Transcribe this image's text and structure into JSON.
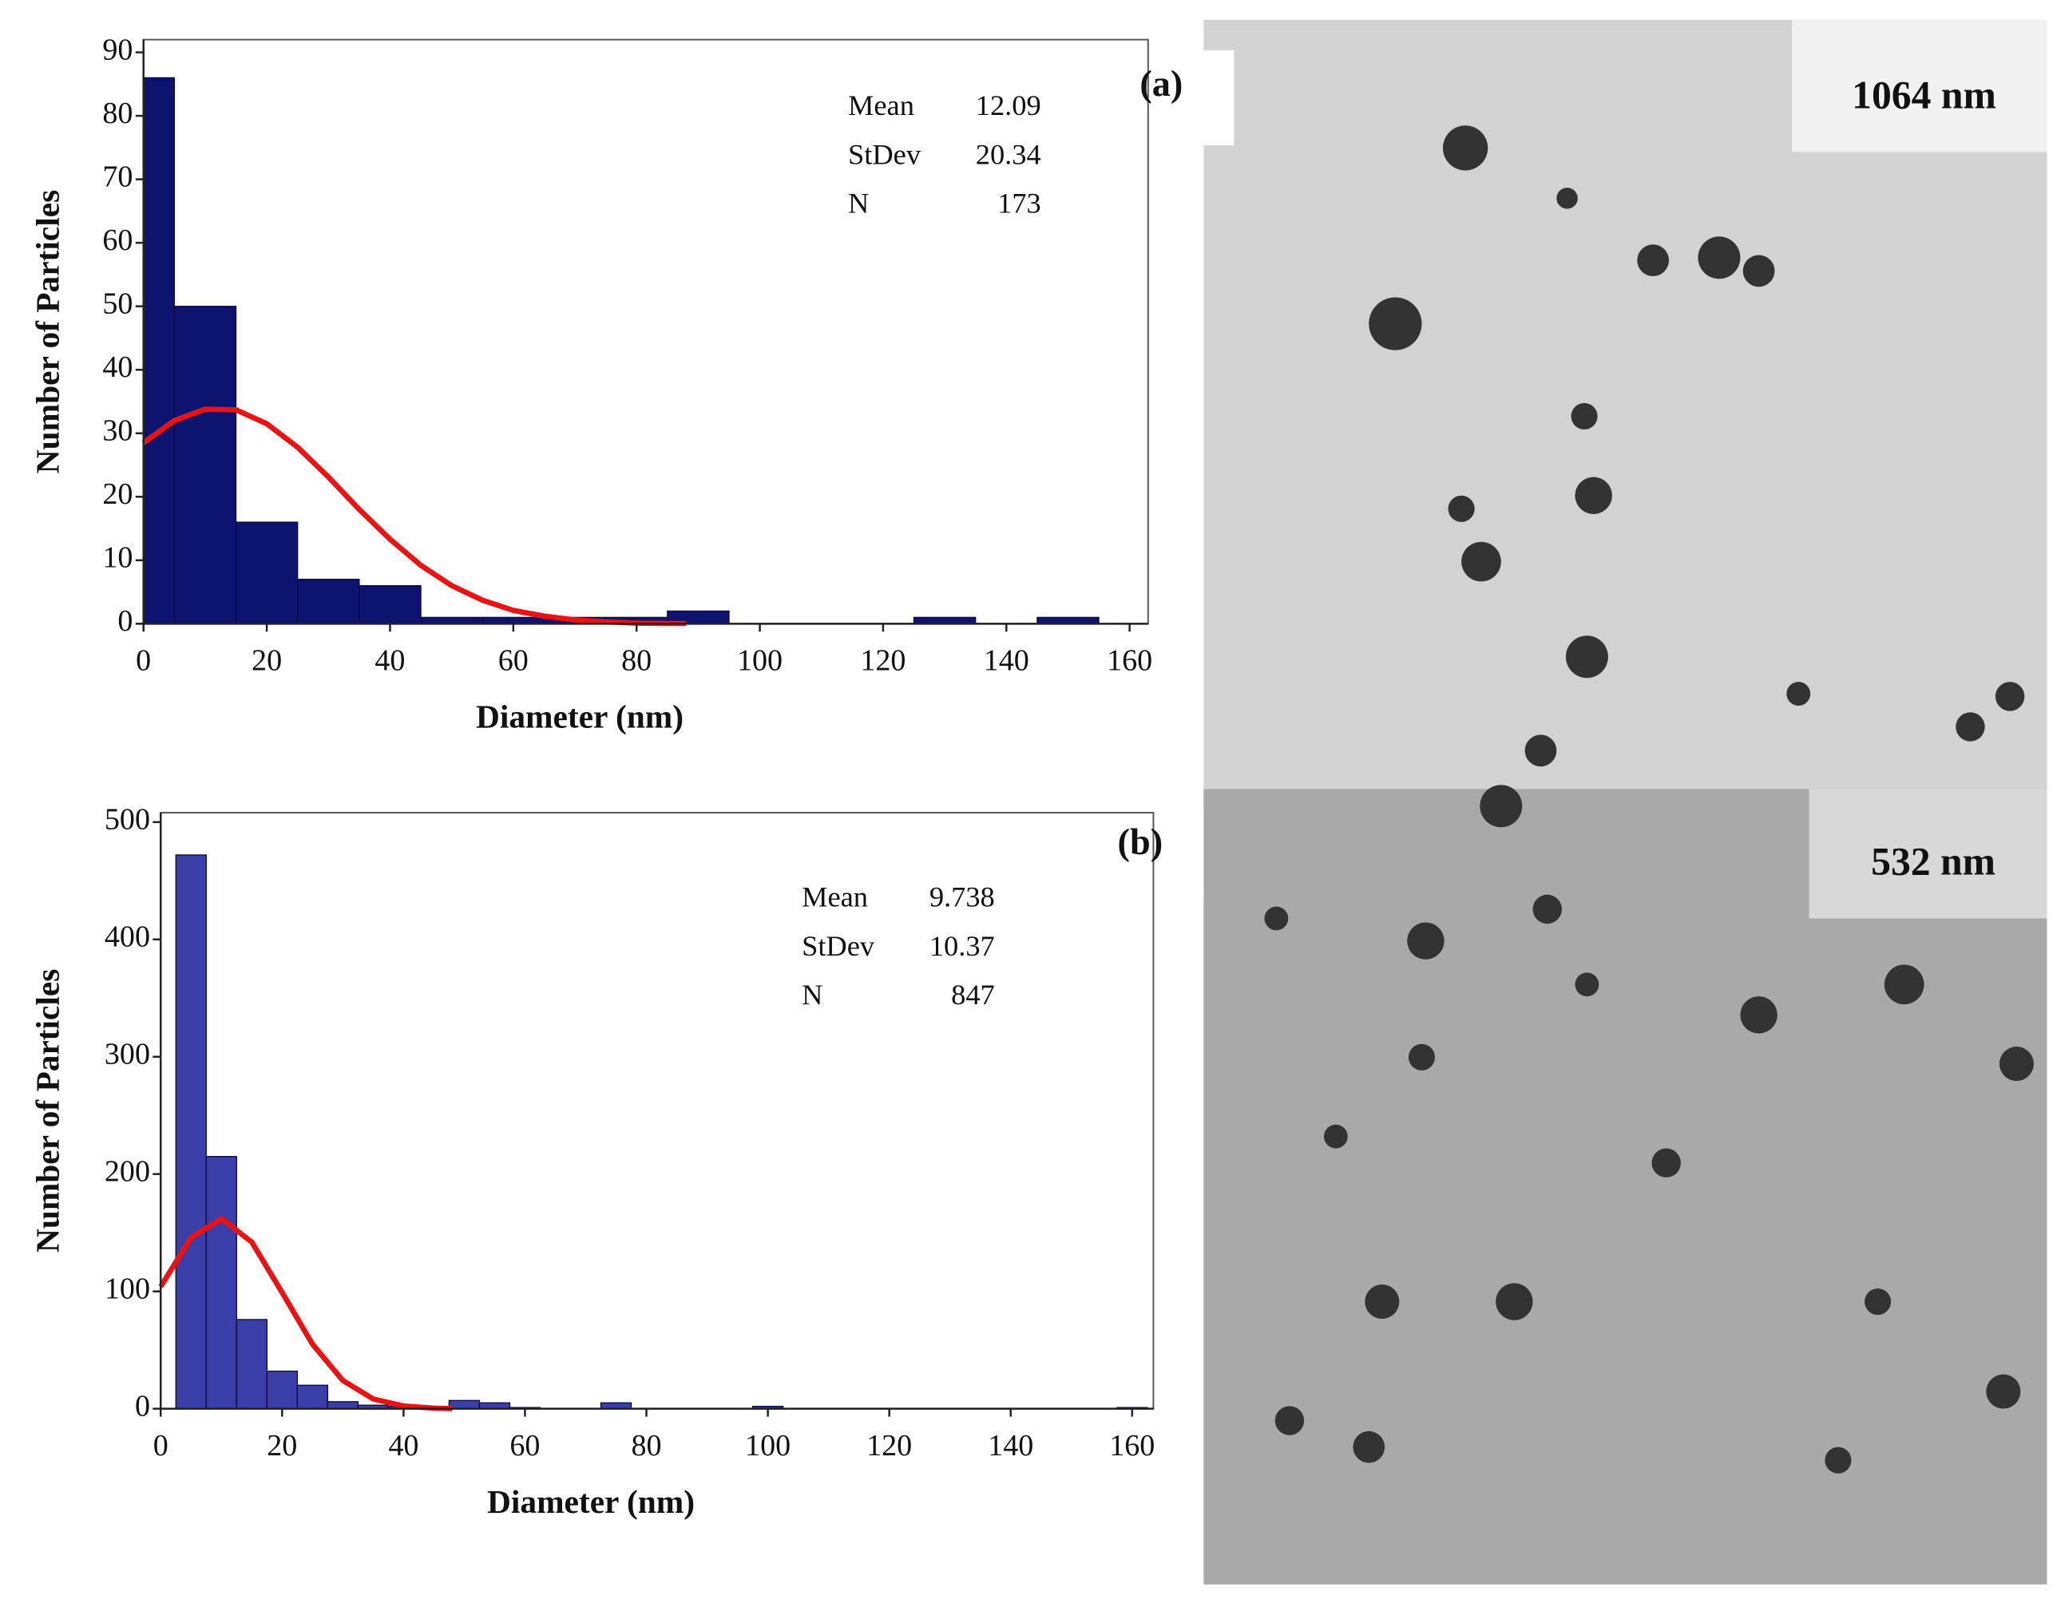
{
  "chart_data": [
    {
      "type": "histogram",
      "label": "(a)",
      "xlabel": "Diameter (nm)",
      "ylabel": "Number of Particles",
      "bins": [
        0,
        5,
        15,
        25,
        35,
        45,
        55,
        65,
        75,
        85,
        95,
        105,
        115,
        125,
        135,
        145,
        155
      ],
      "counts": [
        86,
        50,
        16,
        7,
        6,
        1,
        1,
        1,
        1,
        2,
        0,
        0,
        0,
        1,
        0,
        1
      ],
      "color": "#0d1470",
      "curve": {
        "color": "#ee1111",
        "x": [
          0,
          5,
          10,
          15,
          20,
          25,
          30,
          35,
          40,
          45,
          50,
          55,
          60,
          65,
          70,
          75,
          80,
          85,
          88
        ],
        "y": [
          28.5,
          32,
          33.8,
          33.7,
          31.5,
          27.8,
          23.1,
          18,
          13.3,
          9.2,
          6,
          3.7,
          2.1,
          1.2,
          0.6,
          0.3,
          0.1,
          0.05,
          0.03
        ]
      },
      "xlim": [
        0,
        163
      ],
      "ylim": [
        0,
        92
      ],
      "xticks": [
        0,
        20,
        40,
        60,
        80,
        100,
        120,
        140,
        160
      ],
      "yticks": [
        0,
        10,
        20,
        30,
        40,
        50,
        60,
        70,
        80,
        90
      ],
      "stats": [
        {
          "name": "Mean",
          "value": "12.09"
        },
        {
          "name": "StDev",
          "value": "20.34"
        },
        {
          "name": "N",
          "value": "173"
        }
      ]
    },
    {
      "type": "histogram",
      "label": "(b)",
      "xlabel": "Diameter (nm)",
      "ylabel": "Number of Particles",
      "bins": [
        2.5,
        7.5,
        12.5,
        17.5,
        22.5,
        27.5,
        32.5,
        37.5,
        42.5,
        47.5,
        52.5,
        57.5,
        62.5,
        67.5,
        72.5,
        77.5,
        82.5,
        87.5,
        92.5,
        97.5,
        102.5,
        107.5,
        112.5,
        117.5,
        122.5,
        127.5,
        132.5,
        137.5,
        142.5,
        147.5,
        152.5,
        157.5,
        162.5
      ],
      "counts": [
        472,
        215,
        76,
        32,
        20,
        6,
        3,
        2,
        0,
        7,
        5,
        1,
        0,
        0,
        5,
        0,
        0,
        0,
        0,
        2,
        0,
        0,
        0,
        0,
        0,
        0,
        0,
        0,
        0,
        0,
        0,
        1
      ],
      "color": "#3a3fa8",
      "curve": {
        "color": "#ee1111",
        "x": [
          0,
          5,
          10,
          15,
          20,
          25,
          30,
          35,
          40,
          45,
          48
        ],
        "y": [
          104,
          146,
          162,
          142,
          99,
          55,
          24,
          8.3,
          2.3,
          0.5,
          0.1
        ]
      },
      "xlim": [
        0,
        163.5
      ],
      "ylim": [
        0,
        508
      ],
      "xticks": [
        0,
        20,
        40,
        60,
        80,
        100,
        120,
        140,
        160
      ],
      "yticks": [
        0,
        100,
        200,
        300,
        400,
        500
      ],
      "stats": [
        {
          "name": "Mean",
          "value": "9.738"
        },
        {
          "name": "StDev",
          "value": "10.37"
        },
        {
          "name": "N",
          "value": "847"
        }
      ]
    }
  ],
  "image_labels": [
    "1064 nm",
    "532 nm"
  ]
}
